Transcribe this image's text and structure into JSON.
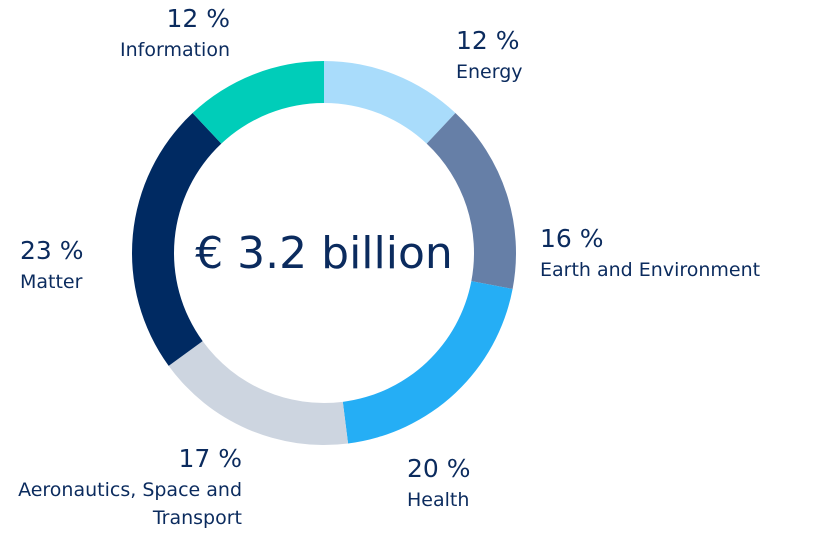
{
  "chart_data": {
    "type": "donut",
    "center_text": "€ 3.2 billion",
    "categories": [
      "Energy",
      "Earth and Environment",
      "Health",
      "Aeronautics, Space and Transport",
      "Matter",
      "Information"
    ],
    "values": [
      12,
      16,
      20,
      17,
      23,
      12
    ],
    "value_labels": [
      "12 %",
      "16 %",
      "20 %",
      "17 %",
      "23 %",
      "12 %"
    ],
    "colors": [
      "#a9dcfb",
      "#667fa7",
      "#25aef5",
      "#cdd5e0",
      "#002a62",
      "#00cdb9"
    ]
  }
}
